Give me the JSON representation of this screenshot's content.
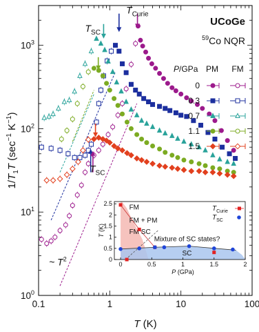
{
  "chart_data": [
    {
      "type": "scatter",
      "title": "UCoGe",
      "subtitle": "59Co NQR",
      "xlabel": "T (K)",
      "ylabel": "1/T1T (sec-1 K-1)",
      "xscale": "log",
      "yscale": "log",
      "xlim": [
        0.1,
        100
      ],
      "ylim": [
        1,
        3000
      ],
      "x_ticks": [
        {
          "v": 0.1,
          "label": "0.1"
        },
        {
          "v": 1,
          "label": "1"
        },
        {
          "v": 10,
          "label": "10"
        },
        {
          "v": 100,
          "label": "100"
        }
      ],
      "y_ticks": [
        {
          "v": 1,
          "base": "10",
          "exp": "0"
        },
        {
          "v": 10,
          "base": "10",
          "exp": "1"
        },
        {
          "v": 100,
          "base": "10",
          "exp": "2"
        },
        {
          "v": 1000,
          "base": "10",
          "exp": "3"
        }
      ],
      "legend_header": {
        "p": "P/GPa",
        "pm": "PM",
        "fm": "FM"
      },
      "legend_placement": "right",
      "series": [
        {
          "name": "0",
          "color": "#9c1a8c",
          "marker": "circle",
          "pm": [
            [
              2.5,
              1700
            ],
            [
              2.7,
              1150
            ],
            [
              2.9,
              980
            ],
            [
              3.2,
              830
            ],
            [
              3.5,
              700
            ],
            [
              3.9,
              600
            ],
            [
              4.4,
              530
            ],
            [
              5,
              460
            ],
            [
              5.7,
              400
            ],
            [
              6.5,
              350
            ],
            [
              7.5,
              310
            ],
            [
              8.5,
              285
            ],
            [
              10,
              260
            ],
            [
              12,
              235
            ],
            [
              14,
              215
            ],
            [
              17,
              195
            ],
            [
              20,
              175
            ],
            [
              25,
              150
            ],
            [
              30,
              125
            ],
            [
              37,
              95
            ],
            [
              45,
              72
            ],
            [
              55,
              55
            ]
          ],
          "fm": [
            [
              2.3,
              1050
            ],
            [
              2,
              590
            ],
            [
              1.7,
              300
            ],
            [
              1.5,
              200
            ],
            [
              1.3,
              145
            ],
            [
              1.1,
              105
            ],
            [
              0.95,
              85
            ],
            [
              0.8,
              65
            ],
            [
              0.7,
              55
            ],
            [
              0.6,
              48
            ],
            [
              0.5,
              38
            ],
            [
              0.45,
              30
            ],
            [
              0.4,
              21
            ],
            [
              0.35,
              16
            ],
            [
              0.3,
              12
            ],
            [
              0.27,
              9
            ],
            [
              0.24,
              7
            ],
            [
              0.2,
              6
            ],
            [
              0.17,
              5
            ],
            [
              0.15,
              4.5
            ],
            [
              0.13,
              4.2
            ],
            [
              0.11,
              4.7
            ]
          ]
        },
        {
          "name": "0.3",
          "color": "#1c2f9e",
          "marker": "square",
          "pm": [
            [
              1.2,
              1000
            ],
            [
              1.35,
              850
            ],
            [
              1.5,
              600
            ],
            [
              1.7,
              470
            ],
            [
              2,
              340
            ],
            [
              2.3,
              290
            ],
            [
              2.6,
              260
            ],
            [
              3,
              230
            ],
            [
              3.5,
              210
            ],
            [
              4,
              195
            ],
            [
              5,
              185
            ],
            [
              6,
              175
            ],
            [
              7,
              165
            ],
            [
              8.5,
              155
            ],
            [
              10,
              145
            ],
            [
              12,
              140
            ],
            [
              15,
              125
            ],
            [
              19,
              110
            ],
            [
              24,
              90
            ],
            [
              30,
              75
            ],
            [
              38,
              60
            ],
            [
              48,
              50
            ],
            [
              58,
              44
            ]
          ],
          "fm": [
            [
              1.05,
              850
            ],
            [
              0.92,
              650
            ],
            [
              0.82,
              430
            ],
            [
              0.75,
              290
            ],
            [
              0.7,
              200
            ],
            [
              0.65,
              120
            ],
            [
              0.55,
              65
            ],
            [
              0.5,
              55
            ],
            [
              0.45,
              48
            ],
            [
              0.38,
              45
            ],
            [
              0.32,
              45
            ],
            [
              0.26,
              50
            ],
            [
              0.2,
              55
            ],
            [
              0.15,
              58
            ],
            [
              0.11,
              60
            ]
          ]
        },
        {
          "name": "0.7",
          "color": "#2aa39b",
          "marker": "triangle",
          "pm": [
            [
              0.65,
              1200
            ],
            [
              0.75,
              1050
            ],
            [
              0.85,
              880
            ],
            [
              0.95,
              640
            ],
            [
              1.1,
              480
            ],
            [
              1.25,
              360
            ],
            [
              1.45,
              280
            ],
            [
              1.7,
              210
            ],
            [
              2,
              170
            ],
            [
              2.4,
              145
            ],
            [
              2.8,
              125
            ],
            [
              3.3,
              115
            ],
            [
              4,
              105
            ],
            [
              5,
              95
            ],
            [
              6,
              88
            ],
            [
              7.5,
              82
            ],
            [
              9,
              76
            ],
            [
              11,
              70
            ],
            [
              14,
              65
            ],
            [
              18,
              60
            ],
            [
              22,
              55
            ],
            [
              28,
              48
            ],
            [
              35,
              43
            ],
            [
              45,
              40
            ],
            [
              55,
              38
            ]
          ],
          "fm": [
            [
              0.55,
              850
            ],
            [
              0.45,
              600
            ],
            [
              0.38,
              430
            ],
            [
              0.32,
              280
            ],
            [
              0.27,
              220
            ],
            [
              0.23,
              210
            ],
            [
              0.19,
              175
            ],
            [
              0.16,
              150
            ],
            [
              0.14,
              140
            ],
            [
              0.12,
              135
            ]
          ]
        },
        {
          "name": "1.1",
          "color": "#7cab22",
          "marker": "circle",
          "pm": [
            [
              0.6,
              530
            ],
            [
              0.7,
              500
            ],
            [
              0.8,
              430
            ],
            [
              0.9,
              350
            ],
            [
              1,
              290
            ],
            [
              1.15,
              230
            ],
            [
              1.3,
              190
            ],
            [
              1.5,
              150
            ],
            [
              1.75,
              120
            ],
            [
              2,
              100
            ],
            [
              2.4,
              85
            ],
            [
              2.8,
              75
            ],
            [
              3.3,
              68
            ],
            [
              4,
              62
            ],
            [
              5,
              57
            ],
            [
              6,
              52
            ],
            [
              7.5,
              48
            ],
            [
              9,
              45
            ],
            [
              11,
              42
            ],
            [
              14,
              40
            ],
            [
              18,
              38
            ],
            [
              22,
              36
            ],
            [
              28,
              34
            ],
            [
              35,
              33
            ],
            [
              45,
              31
            ],
            [
              55,
              30
            ]
          ],
          "fm": [
            [
              0.5,
              480
            ],
            [
              0.42,
              320
            ],
            [
              0.35,
              200
            ],
            [
              0.3,
              130
            ],
            [
              0.25,
              95
            ],
            [
              0.21,
              75
            ]
          ]
        },
        {
          "name": "1.5",
          "color": "#e2401e",
          "marker": "diamond",
          "pm": [
            [
              0.6,
              75
            ],
            [
              0.7,
              78
            ],
            [
              0.8,
              75
            ],
            [
              0.9,
              72
            ],
            [
              1,
              68
            ],
            [
              1.15,
              62
            ],
            [
              1.3,
              58
            ],
            [
              1.5,
              55
            ],
            [
              1.75,
              51
            ],
            [
              2,
              48
            ],
            [
              2.4,
              44
            ],
            [
              2.8,
              42
            ],
            [
              3.3,
              40
            ],
            [
              4,
              38
            ],
            [
              5,
              36
            ],
            [
              6,
              35
            ],
            [
              7.5,
              34
            ],
            [
              9,
              33
            ],
            [
              11,
              32
            ],
            [
              14,
              31
            ],
            [
              18,
              31
            ],
            [
              22,
              30
            ],
            [
              28,
              30
            ],
            [
              35,
              29
            ],
            [
              45,
              28
            ],
            [
              55,
              27
            ]
          ],
          "fm": [
            [
              0.5,
              74
            ],
            [
              0.42,
              55
            ],
            [
              0.36,
              40
            ],
            [
              0.3,
              33
            ],
            [
              0.25,
              28
            ],
            [
              0.2,
              25
            ],
            [
              0.16,
              24
            ],
            [
              0.13,
              24
            ]
          ]
        }
      ],
      "fit_lines": [
        {
          "color": "#9c1a8c",
          "points": [
            [
              0.2,
              1.3
            ],
            [
              2.4,
              200
            ]
          ]
        },
        {
          "color": "#1c2f9e",
          "points": [
            [
              0.15,
              8
            ],
            [
              1.2,
              480
            ]
          ]
        },
        {
          "color": "#2aa39b",
          "points": [
            [
              0.2,
              30
            ],
            [
              0.6,
              260
            ]
          ]
        },
        {
          "color": "#7cab22",
          "points": [
            [
              0.3,
              70
            ],
            [
              0.6,
              290
            ]
          ]
        }
      ],
      "annotations": [
        {
          "text": "T",
          "sub": "Curie",
          "x": 1.7,
          "y": 2400
        },
        {
          "text": "T",
          "sub": "SC",
          "x": 0.45,
          "y": 1450
        },
        {
          "text": "T",
          "sub": "SC",
          "x": 0.52,
          "y": 30
        },
        {
          "text": "~ T",
          "sup": "2",
          "x": 0.14,
          "y": 2.3
        }
      ],
      "arrows": [
        {
          "color": "#9c1a8c",
          "x": 2.45,
          "y0": 2400,
          "y1": 1650
        },
        {
          "color": "#1c2f9e",
          "x": 1.35,
          "y0": 2400,
          "y1": 1500
        },
        {
          "color": "#2aa39b",
          "x": 0.82,
          "y0": 1800,
          "y1": 1250
        },
        {
          "color": "#7cab22",
          "x": 0.69,
          "y0": 720,
          "y1": 520
        },
        {
          "color": "#e2401e",
          "x": 0.63,
          "y0": 115,
          "y1": 82
        },
        {
          "color": "#1c2f9e",
          "x": 0.54,
          "y0": 30,
          "y1": 55
        },
        {
          "color": "#9c1a8c",
          "x": 0.58,
          "y0": 30,
          "y1": 52
        }
      ]
    },
    {
      "type": "scatter",
      "xlabel": "P (GPa)",
      "ylabel": "T (K)",
      "xlim": [
        -0.1,
        2
      ],
      "ylim": [
        0,
        2.6
      ],
      "x_ticks": [
        "0",
        "0.5",
        "1",
        "1.5",
        "2"
      ],
      "y_ticks": [
        "0",
        "0.5",
        "1",
        "1.5",
        "2",
        "2.5"
      ],
      "legend_placement": "top-right",
      "regions": [
        {
          "label": "FM",
          "color": "#f4b8b3"
        },
        {
          "label": "FM + PM"
        },
        {
          "label": "FM SC"
        },
        {
          "label": "Mixture of SC states?"
        },
        {
          "label": "SC",
          "color": "#a9c6ee"
        }
      ],
      "series": [
        {
          "name": "T",
          "sub": "Curie",
          "color": "#e22222",
          "marker": "square",
          "points": [
            [
              0,
              2.45
            ],
            [
              0.3,
              1.35
            ],
            [
              0.55,
              0.55
            ],
            [
              1.5,
              0.32
            ],
            [
              0.1,
              0.0
            ]
          ]
        },
        {
          "name": "T",
          "sub": "SC",
          "color": "#1f45d8",
          "marker": "circle",
          "points": [
            [
              0,
              0.47
            ],
            [
              0.3,
              0.5
            ],
            [
              0.55,
              0.55
            ],
            [
              0.7,
              0.55
            ],
            [
              1.1,
              0.6
            ],
            [
              1.5,
              0.5
            ],
            [
              1.8,
              0.45
            ]
          ]
        }
      ]
    }
  ]
}
